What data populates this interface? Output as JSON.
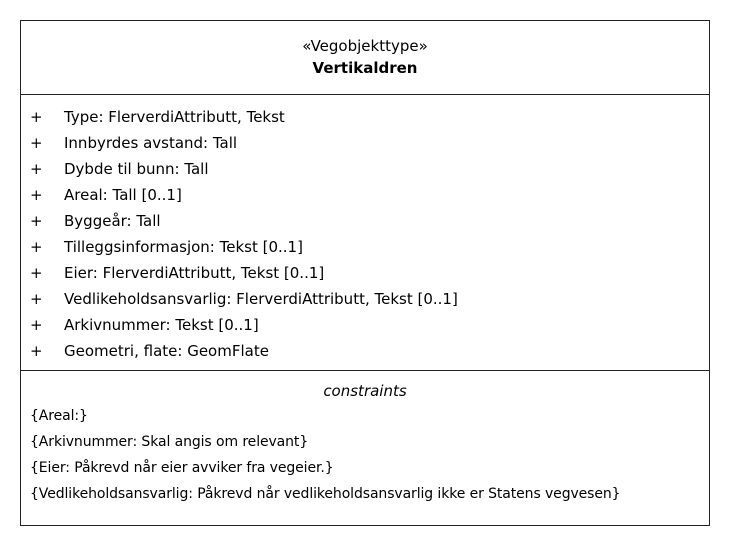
{
  "uml_class": {
    "stereotype": "«Vegobjekttype»",
    "name": "Vertikaldren",
    "attributes": [
      {
        "visibility": "+",
        "text": "Type: FlerverdiAttributt, Tekst"
      },
      {
        "visibility": "+",
        "text": "Innbyrdes avstand: Tall"
      },
      {
        "visibility": "+",
        "text": "Dybde til bunn: Tall"
      },
      {
        "visibility": "+",
        "text": "Areal: Tall [0..1]"
      },
      {
        "visibility": "+",
        "text": "Byggeår: Tall"
      },
      {
        "visibility": "+",
        "text": "Tilleggsinformasjon: Tekst [0..1]"
      },
      {
        "visibility": "+",
        "text": "Eier: FlerverdiAttributt, Tekst [0..1]"
      },
      {
        "visibility": "+",
        "text": "Vedlikeholdsansvarlig: FlerverdiAttributt, Tekst [0..1]"
      },
      {
        "visibility": "+",
        "text": "Arkivnummer: Tekst [0..1]"
      },
      {
        "visibility": "+",
        "text": "Geometri, flate: GeomFlate"
      }
    ],
    "constraints_title": "constraints",
    "constraints": [
      "{Areal:}",
      "{Arkivnummer: Skal angis om relevant}",
      "{Eier: Påkrevd når eier avviker fra vegeier.}",
      "{Vedlikeholdsansvarlig: Påkrevd når vedlikeholdsansvarlig ikke er Statens vegvesen}"
    ]
  }
}
